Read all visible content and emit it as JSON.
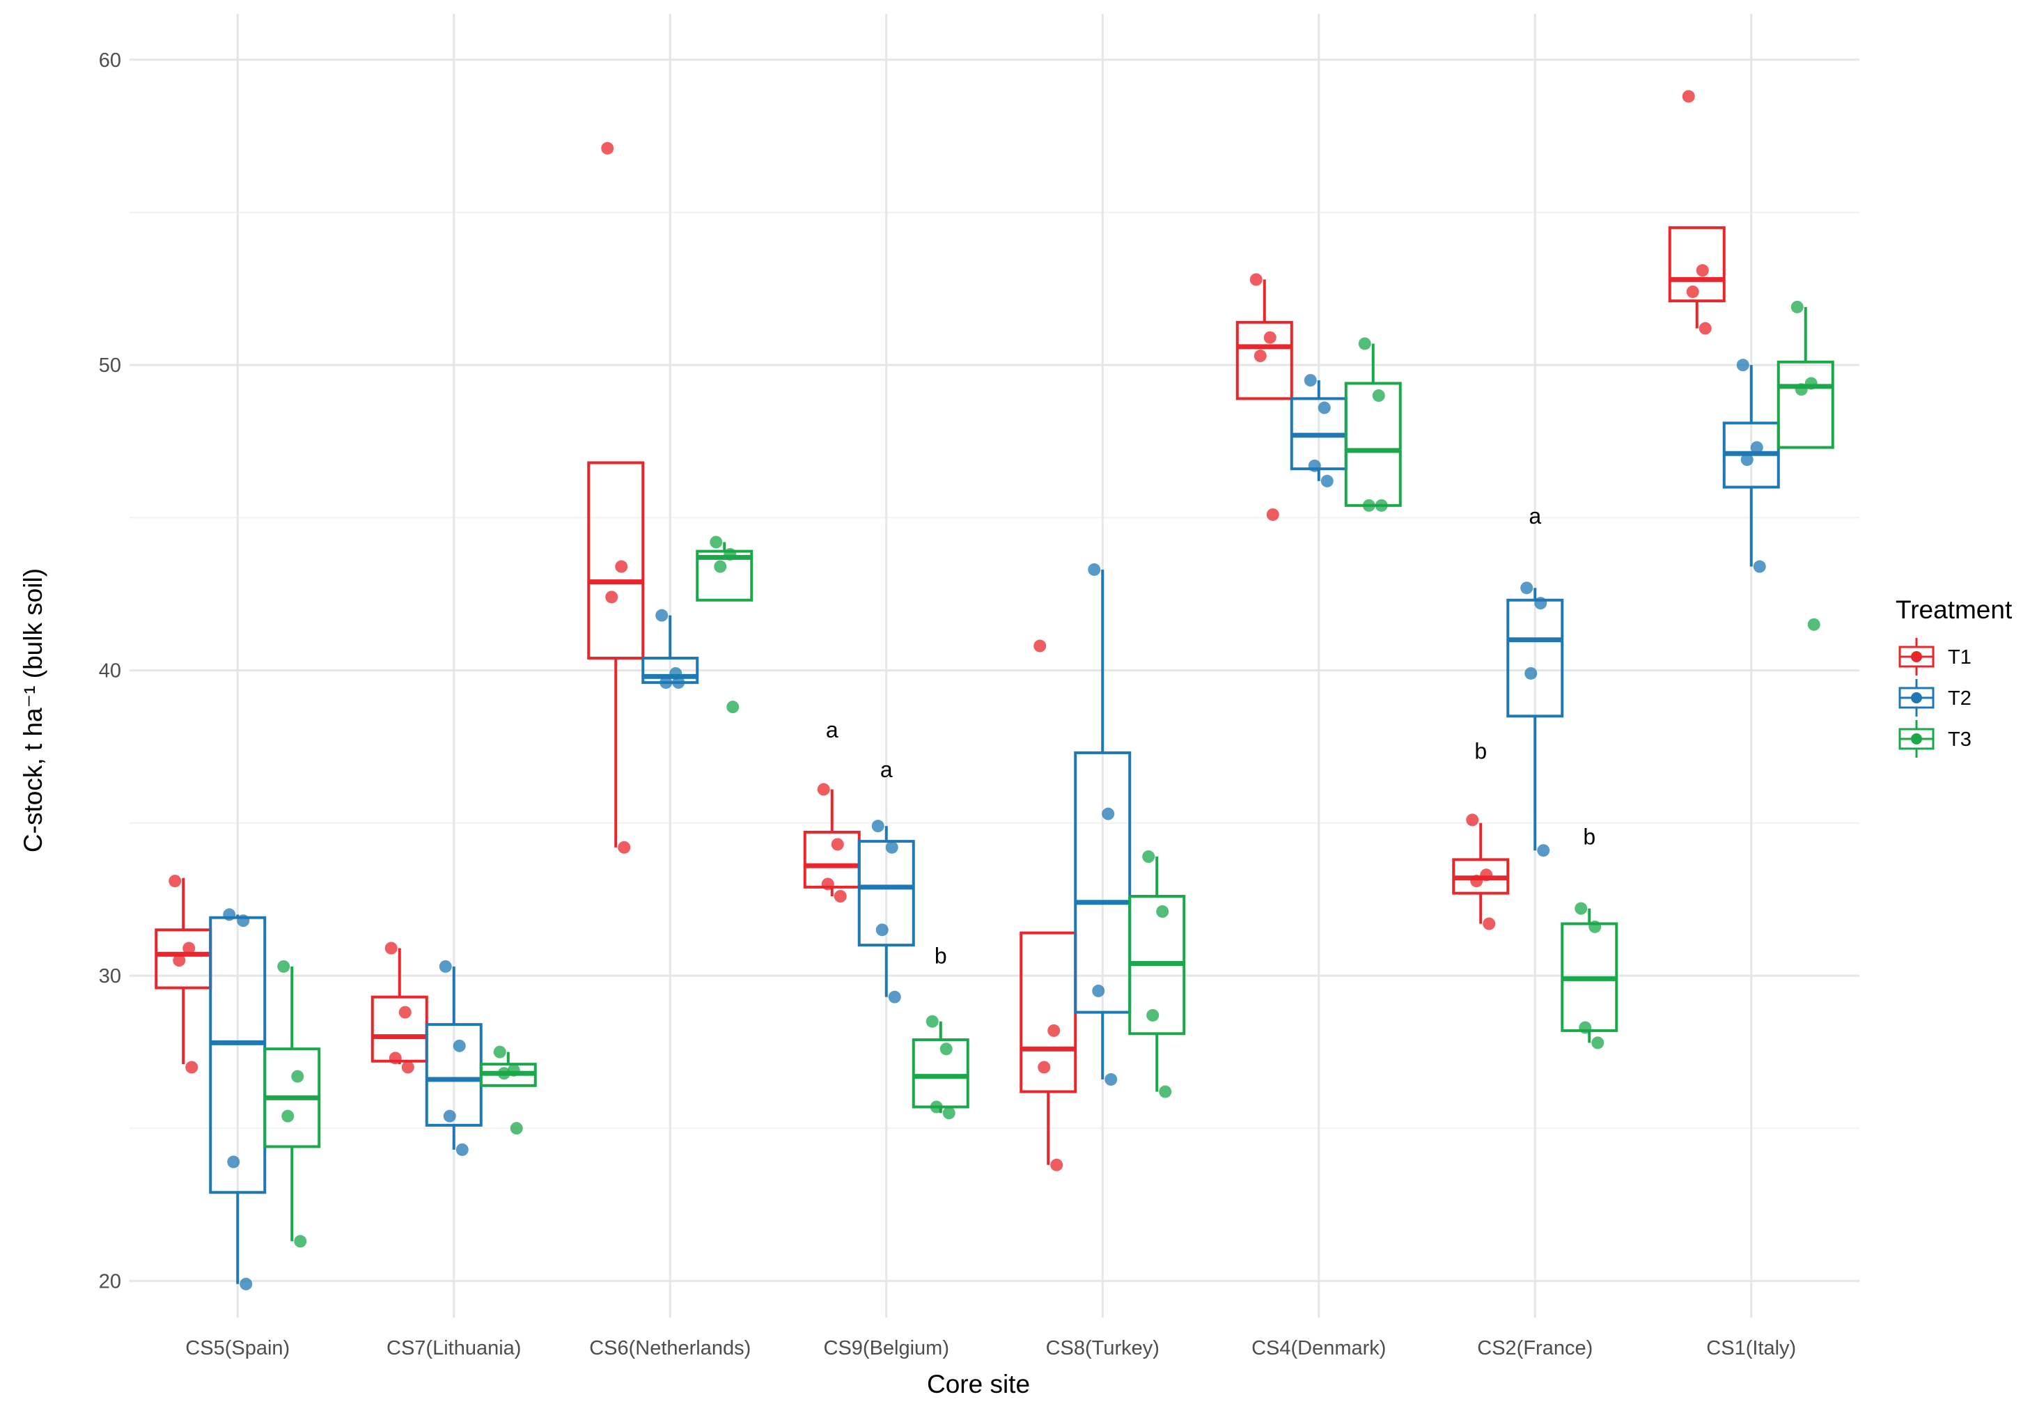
{
  "chart_data": {
    "type": "boxplot",
    "xlabel": "Core site",
    "ylabel": "C-stock, t ha⁻¹ (bulk soil)",
    "ylim": [
      18.8,
      61.5
    ],
    "yticks": [
      20,
      30,
      40,
      50,
      60
    ],
    "grid": true,
    "legend": {
      "title": "Treatment",
      "position": "right",
      "entries": [
        {
          "name": "T1",
          "color": "#e8262b"
        },
        {
          "name": "T2",
          "color": "#1f78b4"
        },
        {
          "name": "T3",
          "color": "#1aa84a"
        }
      ]
    },
    "categories": [
      "CS5(Spain)",
      "CS7(Lithuania)",
      "CS6(Netherlands)",
      "CS9(Belgium)",
      "CS8(Turkey)",
      "CS4(Denmark)",
      "CS2(France)",
      "CS1(Italy)"
    ],
    "series": [
      {
        "name": "T1",
        "color": "#e8262b",
        "boxes": [
          {
            "q1": 29.6,
            "median": 30.7,
            "q3": 31.5,
            "whisker_low": 27.1,
            "whisker_high": 33.2,
            "points": [
              33.1,
              30.9,
              30.5,
              27.0
            ]
          },
          {
            "q1": 27.2,
            "median": 28.0,
            "q3": 29.3,
            "whisker_low": 27.1,
            "whisker_high": 30.9,
            "points": [
              30.9,
              28.8,
              27.3,
              27.0
            ]
          },
          {
            "q1": 40.4,
            "median": 42.9,
            "q3": 46.8,
            "whisker_low": 34.2,
            "whisker_high": 46.8,
            "points": [
              57.1,
              43.4,
              42.4,
              34.2
            ]
          },
          {
            "q1": 32.9,
            "median": 33.6,
            "q3": 34.7,
            "whisker_low": 32.6,
            "whisker_high": 36.1,
            "points": [
              36.1,
              34.3,
              33.0,
              32.6
            ]
          },
          {
            "q1": 26.2,
            "median": 27.6,
            "q3": 31.4,
            "whisker_low": 23.8,
            "whisker_high": 31.4,
            "points": [
              40.8,
              28.2,
              27.0,
              23.8
            ]
          },
          {
            "q1": 48.9,
            "median": 50.6,
            "q3": 51.4,
            "whisker_low": 48.9,
            "whisker_high": 52.8,
            "points": [
              52.8,
              50.9,
              50.3,
              45.1
            ]
          },
          {
            "q1": 32.7,
            "median": 33.2,
            "q3": 33.8,
            "whisker_low": 31.7,
            "whisker_high": 35.0,
            "points": [
              35.1,
              33.3,
              33.1,
              31.7
            ]
          },
          {
            "q1": 52.1,
            "median": 52.8,
            "q3": 54.5,
            "whisker_low": 51.2,
            "whisker_high": 54.5,
            "points": [
              58.8,
              53.1,
              52.4,
              51.2
            ]
          }
        ]
      },
      {
        "name": "T2",
        "color": "#1f78b4",
        "boxes": [
          {
            "q1": 22.9,
            "median": 27.8,
            "q3": 31.9,
            "whisker_low": 19.9,
            "whisker_high": 32.0,
            "points": [
              32.0,
              31.8,
              23.9,
              19.9
            ]
          },
          {
            "q1": 25.1,
            "median": 26.6,
            "q3": 28.4,
            "whisker_low": 24.3,
            "whisker_high": 30.3,
            "points": [
              30.3,
              27.7,
              25.4,
              24.3
            ]
          },
          {
            "q1": 39.6,
            "median": 39.8,
            "q3": 40.4,
            "whisker_low": 39.6,
            "whisker_high": 41.8,
            "points": [
              41.8,
              39.9,
              39.6,
              39.6
            ]
          },
          {
            "q1": 31.0,
            "median": 32.9,
            "q3": 34.4,
            "whisker_low": 29.3,
            "whisker_high": 34.9,
            "points": [
              34.9,
              34.2,
              31.5,
              29.3
            ]
          },
          {
            "q1": 28.8,
            "median": 32.4,
            "q3": 37.3,
            "whisker_low": 26.6,
            "whisker_high": 43.3,
            "points": [
              43.3,
              35.3,
              29.5,
              26.6
            ]
          },
          {
            "q1": 46.6,
            "median": 47.7,
            "q3": 48.9,
            "whisker_low": 46.2,
            "whisker_high": 49.5,
            "points": [
              49.5,
              48.6,
              46.7,
              46.2
            ]
          },
          {
            "q1": 38.5,
            "median": 41.0,
            "q3": 42.3,
            "whisker_low": 34.1,
            "whisker_high": 42.7,
            "points": [
              42.7,
              42.2,
              39.9,
              34.1
            ]
          },
          {
            "q1": 46.0,
            "median": 47.1,
            "q3": 48.1,
            "whisker_low": 43.4,
            "whisker_high": 50.0,
            "points": [
              50.0,
              47.3,
              46.9,
              43.4
            ]
          }
        ]
      },
      {
        "name": "T3",
        "color": "#1aa84a",
        "boxes": [
          {
            "q1": 24.4,
            "median": 26.0,
            "q3": 27.6,
            "whisker_low": 21.3,
            "whisker_high": 30.3,
            "points": [
              30.3,
              26.7,
              25.4,
              21.3
            ]
          },
          {
            "q1": 26.4,
            "median": 26.8,
            "q3": 27.1,
            "whisker_low": 26.4,
            "whisker_high": 27.5,
            "points": [
              27.5,
              26.9,
              26.8,
              25.0
            ]
          },
          {
            "q1": 42.3,
            "median": 43.7,
            "q3": 43.9,
            "whisker_low": 42.3,
            "whisker_high": 44.2,
            "points": [
              44.2,
              43.8,
              43.4,
              38.8
            ]
          },
          {
            "q1": 25.7,
            "median": 26.7,
            "q3": 27.9,
            "whisker_low": 25.5,
            "whisker_high": 28.5,
            "points": [
              28.5,
              27.6,
              25.7,
              25.5
            ]
          },
          {
            "q1": 28.1,
            "median": 30.4,
            "q3": 32.6,
            "whisker_low": 26.2,
            "whisker_high": 33.9,
            "points": [
              33.9,
              32.1,
              28.7,
              26.2
            ]
          },
          {
            "q1": 45.4,
            "median": 47.2,
            "q3": 49.4,
            "whisker_low": 45.4,
            "whisker_high": 50.7,
            "points": [
              50.7,
              49.0,
              45.4,
              45.4
            ]
          },
          {
            "q1": 28.2,
            "median": 29.9,
            "q3": 31.7,
            "whisker_low": 27.8,
            "whisker_high": 32.2,
            "points": [
              32.2,
              31.6,
              28.3,
              27.8
            ]
          },
          {
            "q1": 47.3,
            "median": 49.3,
            "q3": 50.1,
            "whisker_low": 47.3,
            "whisker_high": 51.9,
            "points": [
              51.9,
              49.4,
              49.2,
              41.5
            ]
          }
        ]
      }
    ],
    "annotations": [
      {
        "text": "a",
        "category": "CS9(Belgium)",
        "series": "T1",
        "y": 37.8
      },
      {
        "text": "a",
        "category": "CS9(Belgium)",
        "series": "T2",
        "y": 36.5
      },
      {
        "text": "b",
        "category": "CS9(Belgium)",
        "series": "T3",
        "y": 30.4
      },
      {
        "text": "b",
        "category": "CS2(France)",
        "series": "T1",
        "y": 37.1
      },
      {
        "text": "a",
        "category": "CS2(France)",
        "series": "T2",
        "y": 44.8
      },
      {
        "text": "b",
        "category": "CS2(France)",
        "series": "T3",
        "y": 34.3
      }
    ]
  }
}
